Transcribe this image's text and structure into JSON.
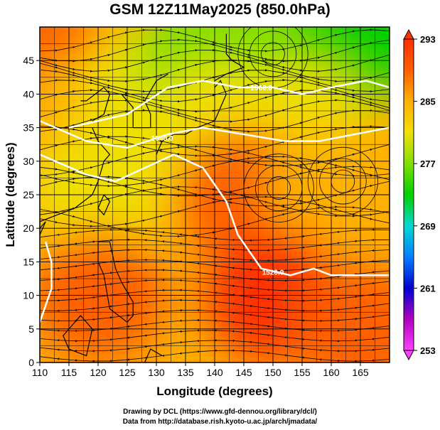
{
  "title": "GSM 12Z11May2025 (850.0hPa)",
  "credits": {
    "line1": "Drawing by DCL (https://www.gfd-dennou.org/library/dcl/)",
    "line2": "Data from http://database.rish.kyoto-u.ac.jp/arch/jmadata/"
  },
  "chart_data": {
    "type": "heatmap",
    "title": "GSM 12Z11May2025 (850.0hPa)",
    "xlabel": "Longitude (degrees)",
    "ylabel": "Latitude (degrees)",
    "xlim": [
      110,
      170
    ],
    "ylim": [
      0,
      50
    ],
    "x_ticks": [
      110,
      115,
      120,
      125,
      130,
      135,
      140,
      145,
      150,
      155,
      160,
      165
    ],
    "y_ticks": [
      0,
      5,
      10,
      15,
      20,
      25,
      30,
      35,
      40,
      45
    ],
    "grid": true,
    "colorbar": {
      "min": 253,
      "max": 293,
      "ticks": [
        253,
        261,
        269,
        277,
        285,
        293
      ],
      "colors": [
        "#ff40ff",
        "#b000c0",
        "#0000d0",
        "#0080ff",
        "#00d8d0",
        "#00d000",
        "#80e000",
        "#f0e000",
        "#ffb000",
        "#ff6000",
        "#ff3000"
      ]
    },
    "temperature_regions": [
      {
        "lon": 110,
        "lat": 45,
        "value": 289
      },
      {
        "lon": 112,
        "lat": 40,
        "value": 287
      },
      {
        "lon": 115,
        "lat": 35,
        "value": 284
      },
      {
        "lon": 128,
        "lat": 40,
        "value": 279
      },
      {
        "lon": 138,
        "lat": 45,
        "value": 276
      },
      {
        "lon": 150,
        "lat": 45,
        "value": 275
      },
      {
        "lon": 165,
        "lat": 48,
        "value": 272
      },
      {
        "lon": 140,
        "lat": 35,
        "value": 279
      },
      {
        "lon": 155,
        "lat": 35,
        "value": 281
      },
      {
        "lon": 120,
        "lat": 25,
        "value": 282
      },
      {
        "lon": 145,
        "lat": 25,
        "value": 288
      },
      {
        "lon": 160,
        "lat": 25,
        "value": 286
      },
      {
        "lon": 120,
        "lat": 10,
        "value": 290
      },
      {
        "lon": 150,
        "lat": 10,
        "value": 291
      },
      {
        "lon": 165,
        "lat": 5,
        "value": 290
      }
    ],
    "height_contours": [
      {
        "label": "1560.0",
        "points": [
          [
            115,
            35
          ],
          [
            125,
            37
          ],
          [
            132,
            41
          ],
          [
            138,
            42
          ],
          [
            144,
            41
          ],
          [
            150,
            41
          ],
          [
            155,
            40
          ],
          [
            160,
            41
          ],
          [
            166,
            42
          ],
          [
            170,
            41
          ]
        ],
        "label_at": [
          148,
          41
        ]
      },
      {
        "label": "1540.0",
        "points": [
          [
            110,
            36
          ],
          [
            118,
            33
          ],
          [
            125,
            32
          ],
          [
            132,
            34
          ],
          [
            138,
            35
          ],
          [
            145,
            34
          ],
          [
            152,
            33
          ],
          [
            158,
            33
          ],
          [
            164,
            34
          ],
          [
            170,
            35
          ]
        ],
        "label_at": [
          131,
          33.5
        ]
      },
      {
        "label": "1520.0",
        "points": [
          [
            110,
            31
          ],
          [
            118,
            28
          ],
          [
            123,
            27
          ],
          [
            128,
            29
          ],
          [
            133,
            31
          ],
          [
            138,
            29
          ],
          [
            142,
            24
          ],
          [
            144,
            19
          ],
          [
            148,
            14
          ],
          [
            153,
            13
          ],
          [
            157,
            14
          ],
          [
            160,
            13
          ],
          [
            165,
            13
          ],
          [
            170,
            13
          ]
        ],
        "label_at": [
          150,
          13.5
        ]
      },
      {
        "label": "",
        "points": [
          [
            110,
            6
          ],
          [
            112,
            11
          ],
          [
            112,
            15
          ],
          [
            111,
            18
          ]
        ],
        "label_at": null
      }
    ],
    "pressure_centers": [
      {
        "lon": 150,
        "lat": 46,
        "type": "low-circulation"
      },
      {
        "lon": 151,
        "lat": 26,
        "type": "high-circulation"
      },
      {
        "lon": 162,
        "lat": 27,
        "type": "circulation"
      }
    ],
    "wind_field": [
      {
        "region": "north",
        "lat_range": [
          35,
          50
        ],
        "flow": "westerly"
      },
      {
        "region": "mid",
        "lat_range": [
          20,
          35
        ],
        "flow": "anticyclonic"
      },
      {
        "region": "south",
        "lat_range": [
          0,
          20
        ],
        "flow": "easterly"
      }
    ]
  }
}
